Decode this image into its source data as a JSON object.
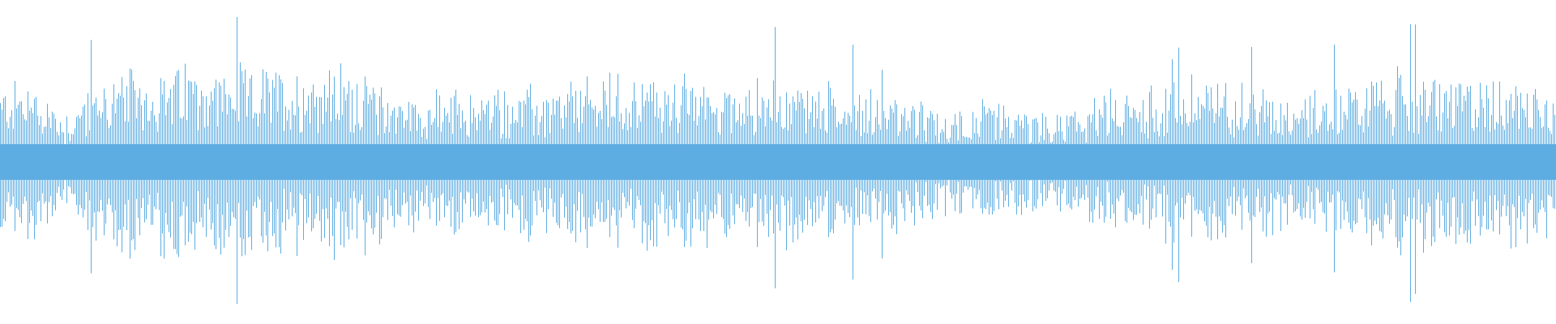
{
  "waveform": {
    "color": "#5dade2",
    "background": "#ffffff",
    "envelope": [
      0.45,
      0.5,
      0.3,
      0.5,
      0.55,
      0.55,
      0.58,
      0.55,
      0.55,
      0.55,
      0.58,
      0.55,
      0.45,
      0.4,
      0.42,
      0.42,
      0.45,
      0.4,
      0.5,
      0.5,
      0.52,
      0.5,
      0.5,
      0.48,
      0.5,
      0.48,
      0.45,
      0.45,
      0.38,
      0.3,
      0.35,
      0.33,
      0.3,
      0.3,
      0.4,
      0.42,
      0.45,
      0.5,
      0.48,
      0.45,
      0.42,
      0.45,
      0.5,
      0.52,
      0.5,
      0.5,
      0.52,
      0.5
    ]
  }
}
